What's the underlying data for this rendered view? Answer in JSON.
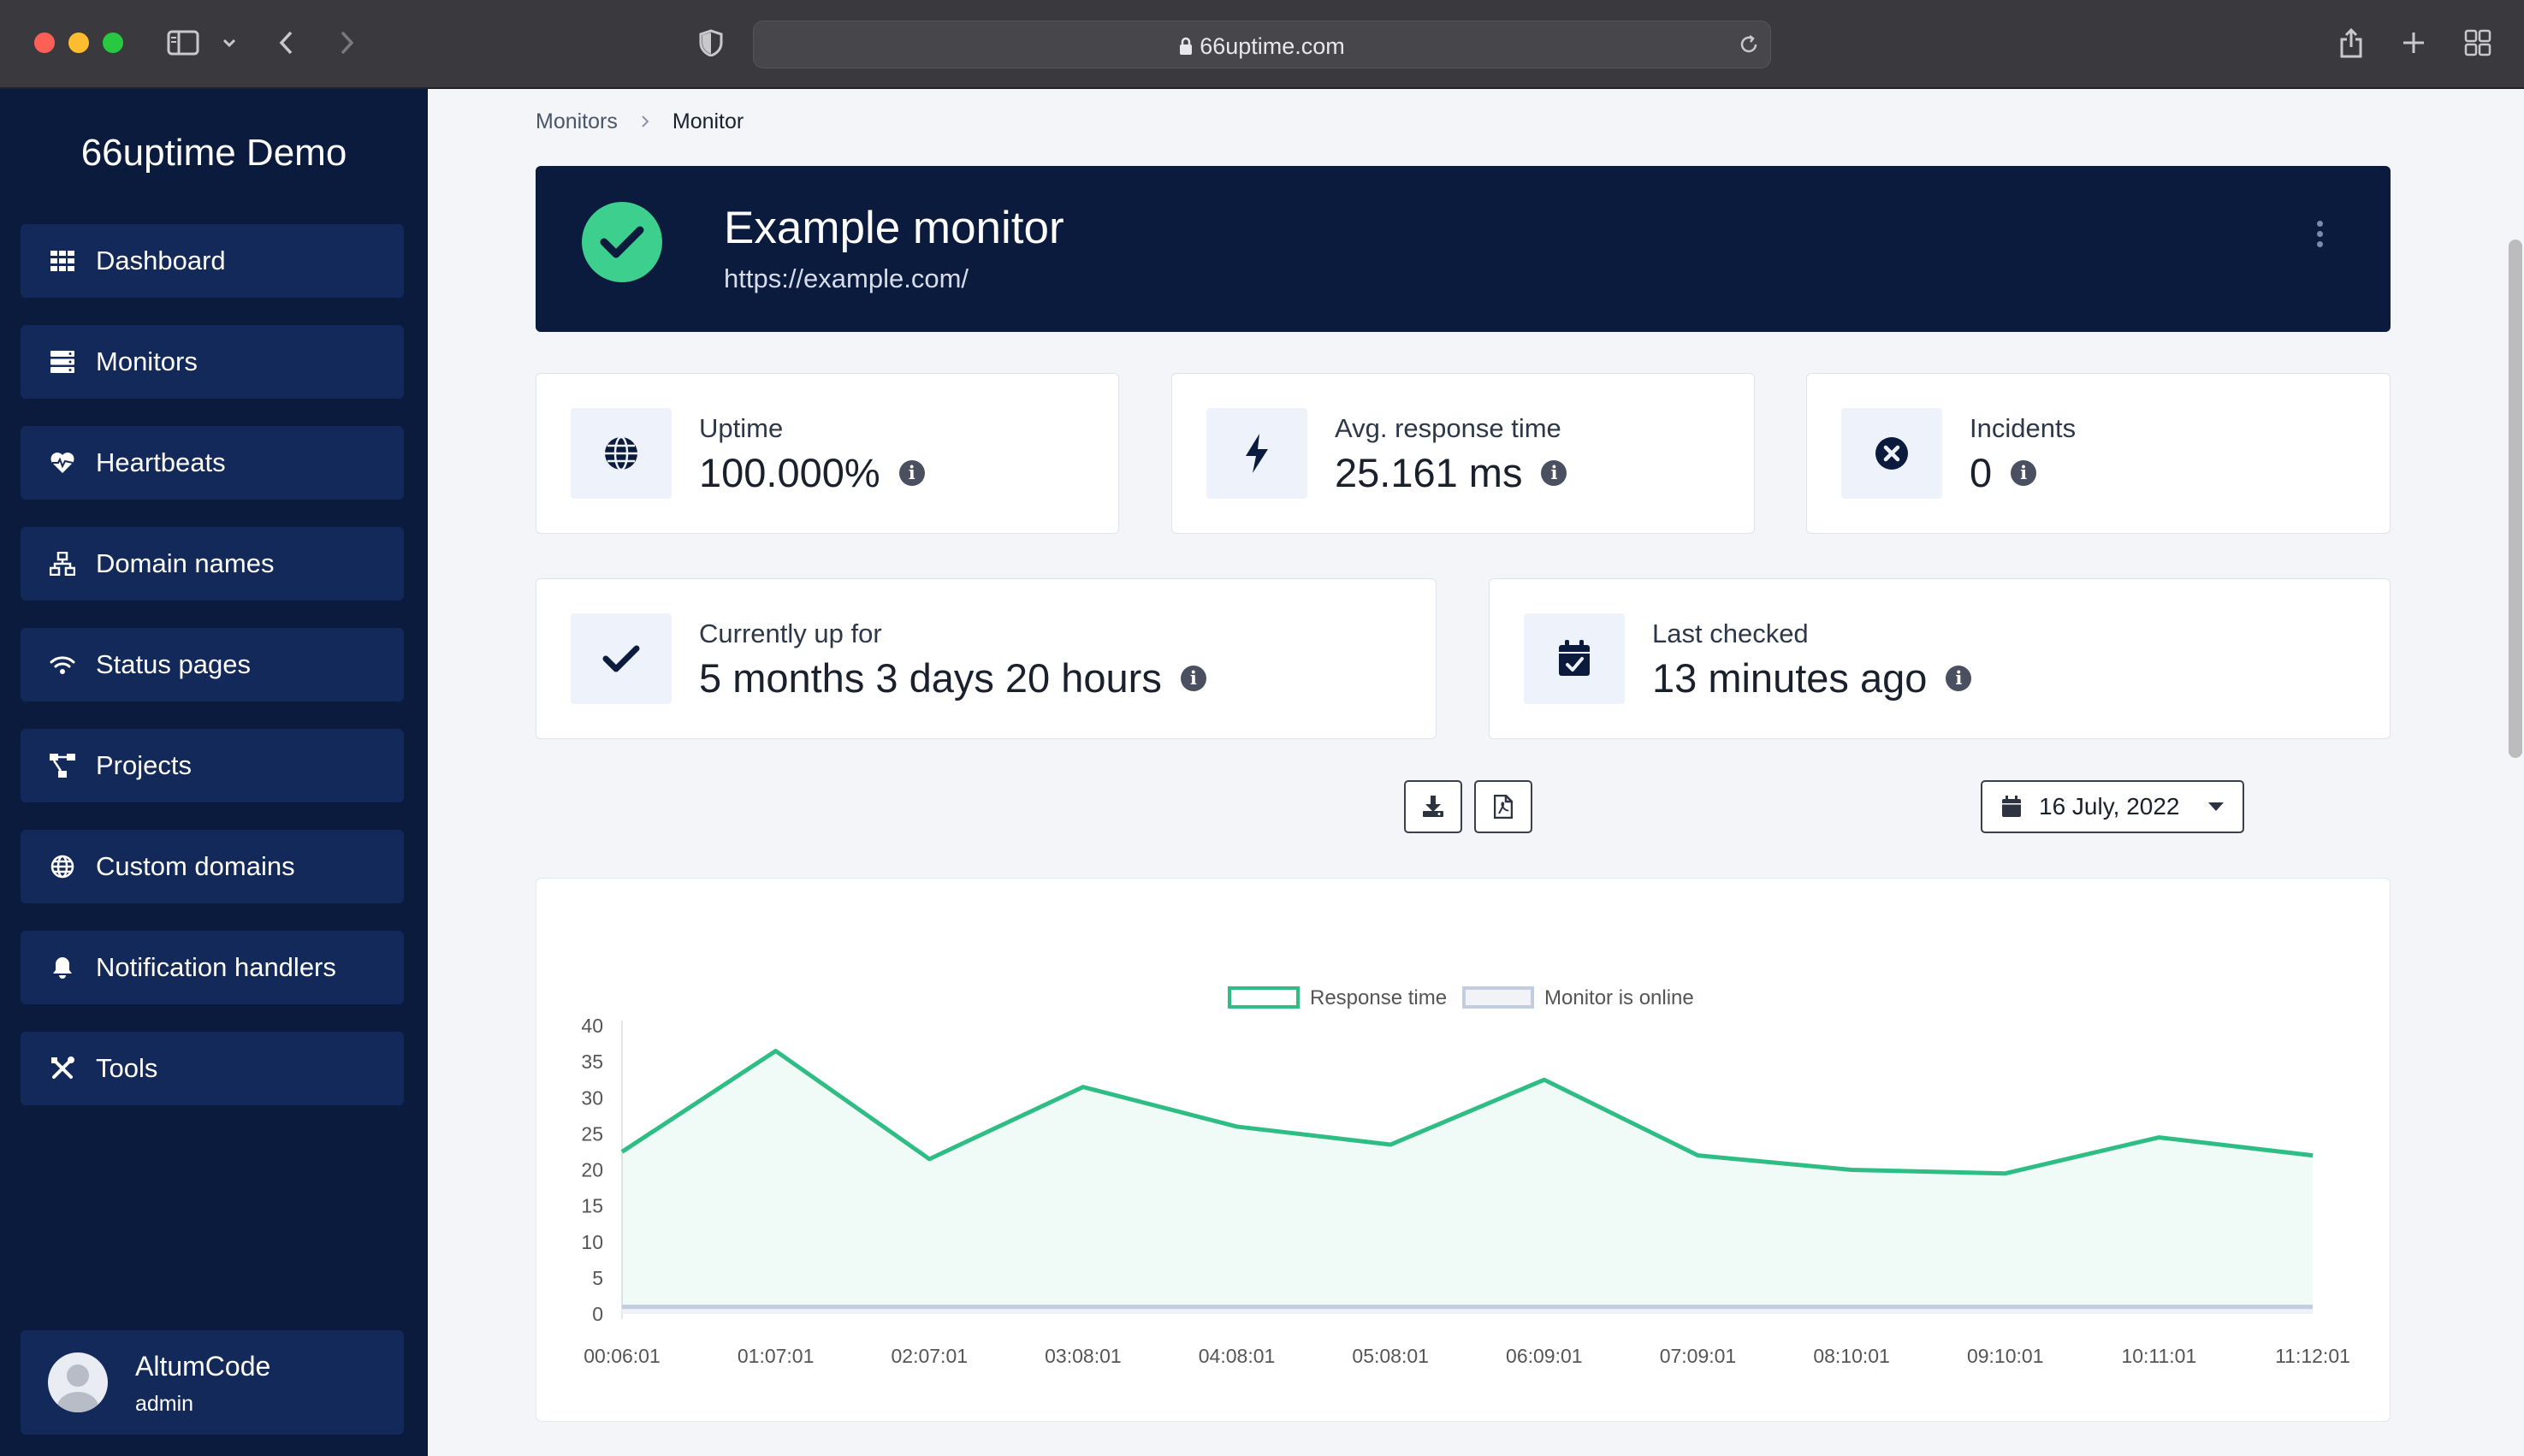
{
  "browser": {
    "url": "66uptime.com"
  },
  "sidebar": {
    "brand": "66uptime Demo",
    "items": [
      {
        "label": "Dashboard",
        "icon": "grid-icon"
      },
      {
        "label": "Monitors",
        "icon": "server-icon"
      },
      {
        "label": "Heartbeats",
        "icon": "heart-pulse-icon"
      },
      {
        "label": "Domain names",
        "icon": "network-icon"
      },
      {
        "label": "Status pages",
        "icon": "wifi-icon"
      },
      {
        "label": "Projects",
        "icon": "project-diagram-icon"
      },
      {
        "label": "Custom domains",
        "icon": "globe-icon"
      },
      {
        "label": "Notification handlers",
        "icon": "bell-icon"
      },
      {
        "label": "Tools",
        "icon": "tools-icon"
      }
    ],
    "user": {
      "name": "AltumCode",
      "role": "admin"
    }
  },
  "breadcrumb": {
    "parent": "Monitors",
    "current": "Monitor"
  },
  "monitor": {
    "name": "Example monitor",
    "url": "https://example.com/",
    "status_color": "#3ccf8e"
  },
  "stats": {
    "uptime": {
      "label": "Uptime",
      "value": "100.000%"
    },
    "response": {
      "label": "Avg. response time",
      "value": "25.161 ms"
    },
    "incidents": {
      "label": "Incidents",
      "value": "0"
    },
    "up_for": {
      "label": "Currently up for",
      "value": "5 months 3 days 20 hours"
    },
    "last_checked": {
      "label": "Last checked",
      "value": "13 minutes ago"
    }
  },
  "toolbar": {
    "date": "16 July, 2022"
  },
  "chart_data": {
    "type": "area",
    "x": [
      "00:06:01",
      "01:07:01",
      "02:07:01",
      "03:08:01",
      "04:08:01",
      "05:08:01",
      "06:09:01",
      "07:09:01",
      "08:10:01",
      "09:10:01",
      "10:11:01",
      "11:12:01"
    ],
    "series": [
      {
        "name": "Response time",
        "color": "#2ebd85",
        "values": [
          22.5,
          36.5,
          21.5,
          31.5,
          26,
          23.5,
          32.5,
          22,
          20,
          19.5,
          24.5,
          22
        ]
      },
      {
        "name": "Monitor is online",
        "color": "#c3cde0",
        "values": [
          1,
          1,
          1,
          1,
          1,
          1,
          1,
          1,
          1,
          1,
          1,
          1
        ]
      }
    ],
    "yticks": [
      "40",
      "35",
      "30",
      "25",
      "20",
      "15",
      "10",
      "5",
      "0"
    ],
    "ylim": [
      0,
      40
    ],
    "legend": "top-center"
  }
}
